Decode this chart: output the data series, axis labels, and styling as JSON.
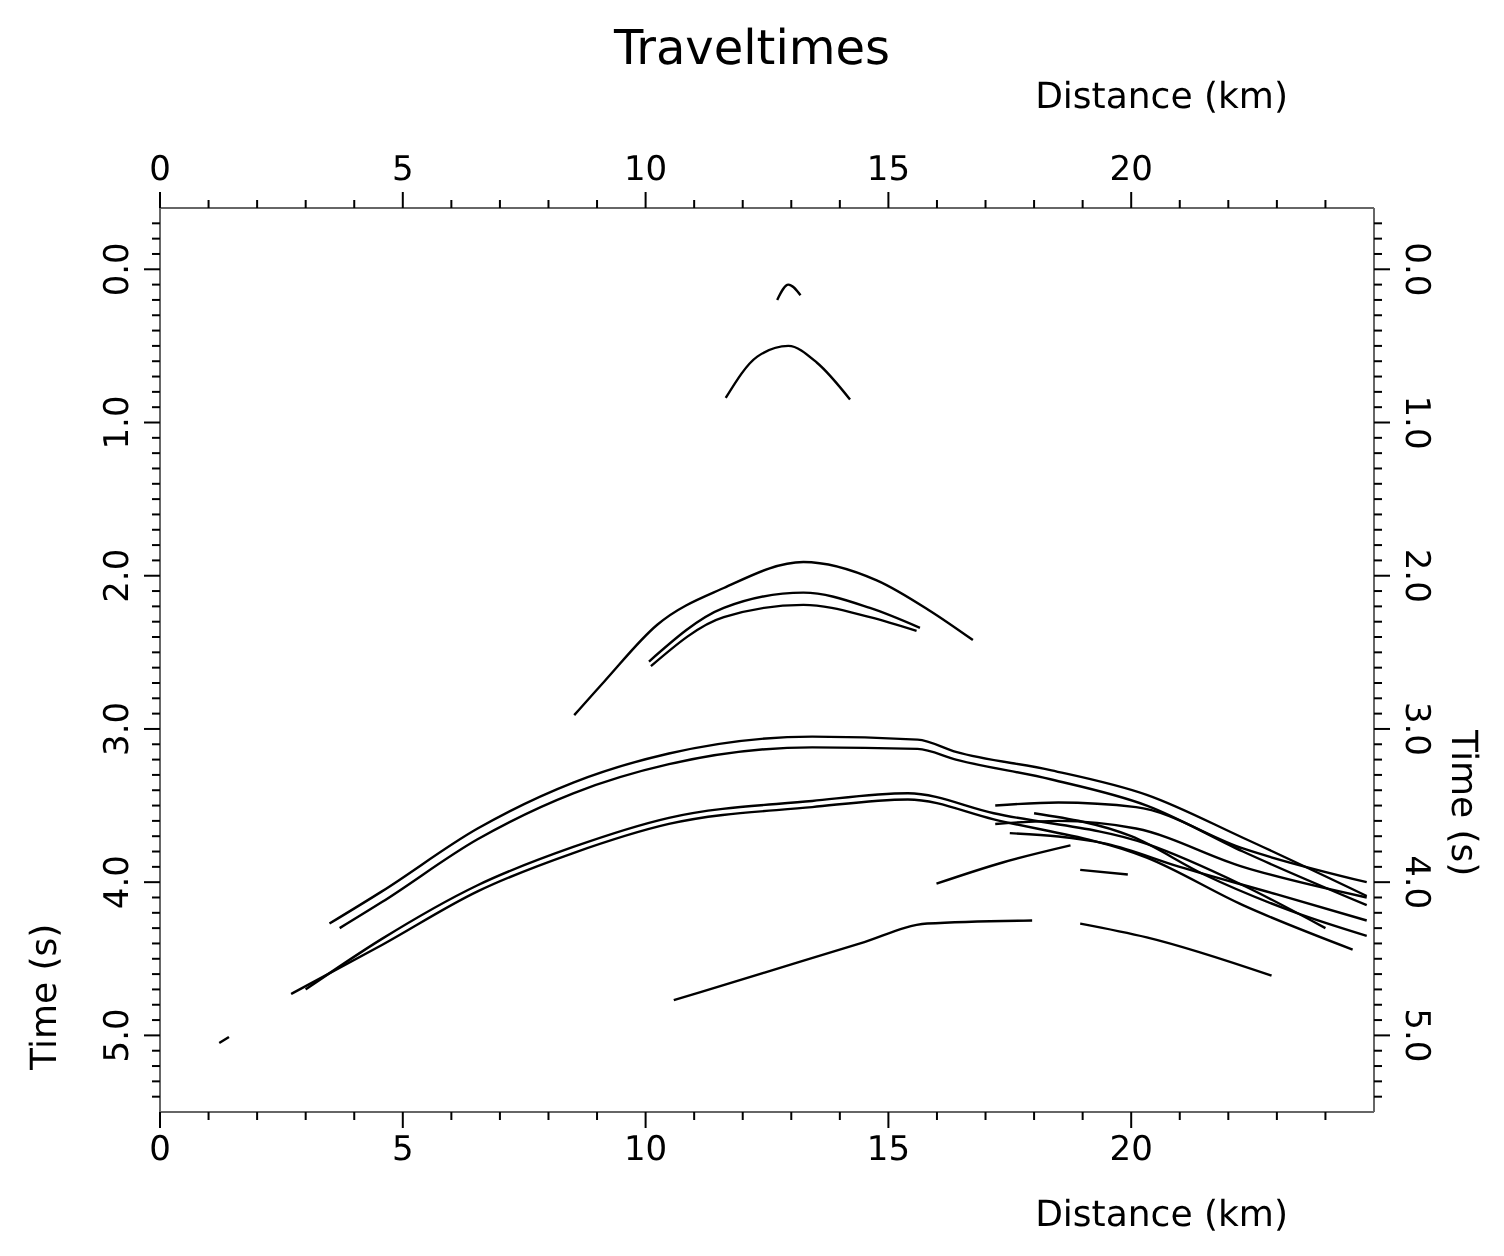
{
  "chart_data": {
    "type": "line",
    "title": "Traveltimes",
    "xlabel": "Distance (km)",
    "x2label": "Distance (km)",
    "ylabel": "Time (s)",
    "y2label": "Time (s)",
    "xlim": [
      0,
      25
    ],
    "x2lim": [
      0,
      25
    ],
    "ylim": [
      5.5,
      -0.4
    ],
    "y2lim": [
      5.5,
      -0.4
    ],
    "xticks": [
      0,
      {
        "value": 1,
        "label": null
      },
      {
        "value": 2,
        "label": null
      },
      {
        "value": 3,
        "label": null
      },
      {
        "value": 4,
        "label": null
      },
      5,
      {
        "value": 6,
        "label": null
      },
      {
        "value": 7,
        "label": null
      },
      {
        "value": 8,
        "label": null
      },
      {
        "value": 9,
        "label": null
      },
      10,
      {
        "value": 11,
        "label": null
      },
      {
        "value": 12,
        "label": null
      },
      {
        "value": 13,
        "label": null
      },
      {
        "value": 14,
        "label": null
      },
      15,
      {
        "value": 16,
        "label": null
      },
      {
        "value": 17,
        "label": null
      },
      {
        "value": 18,
        "label": null
      },
      {
        "value": 19,
        "label": null
      },
      20,
      {
        "value": 21,
        "label": null
      },
      {
        "value": 22,
        "label": null
      },
      {
        "value": 23,
        "label": null
      },
      {
        "value": 24,
        "label": null
      }
    ],
    "x2ticks": [
      0,
      {
        "value": 1,
        "label": null
      },
      {
        "value": 2,
        "label": null
      },
      {
        "value": 3,
        "label": null
      },
      {
        "value": 4,
        "label": null
      },
      5,
      {
        "value": 6,
        "label": null
      },
      {
        "value": 7,
        "label": null
      },
      {
        "value": 8,
        "label": null
      },
      {
        "value": 9,
        "label": null
      },
      10,
      {
        "value": 11,
        "label": null
      },
      {
        "value": 12,
        "label": null
      },
      {
        "value": 13,
        "label": null
      },
      {
        "value": 14,
        "label": null
      },
      15,
      {
        "value": 16,
        "label": null
      },
      {
        "value": 17,
        "label": null
      },
      {
        "value": 18,
        "label": null
      },
      {
        "value": 19,
        "label": null
      },
      20,
      {
        "value": 21,
        "label": null
      },
      {
        "value": 22,
        "label": null
      },
      {
        "value": 23,
        "label": null
      },
      {
        "value": 24,
        "label": null
      }
    ],
    "yticks": [
      {
        "value": -0.3,
        "label": null
      },
      {
        "value": -0.2,
        "label": null
      },
      {
        "value": -0.1,
        "label": null
      },
      {
        "value": 0,
        "label": "0.0"
      },
      {
        "value": 0.1,
        "label": null
      },
      {
        "value": 0.2,
        "label": null
      },
      {
        "value": 0.3,
        "label": null
      },
      {
        "value": 0.4,
        "label": null
      },
      {
        "value": 0.5,
        "label": null
      },
      {
        "value": 0.6,
        "label": null
      },
      {
        "value": 0.7,
        "label": null
      },
      {
        "value": 0.8,
        "label": null
      },
      {
        "value": 0.9,
        "label": null
      },
      {
        "value": 1,
        "label": "1.0"
      },
      {
        "value": 1.1,
        "label": null
      },
      {
        "value": 1.2,
        "label": null
      },
      {
        "value": 1.3,
        "label": null
      },
      {
        "value": 1.4,
        "label": null
      },
      {
        "value": 1.5,
        "label": null
      },
      {
        "value": 1.6,
        "label": null
      },
      {
        "value": 1.7,
        "label": null
      },
      {
        "value": 1.8,
        "label": null
      },
      {
        "value": 1.9,
        "label": null
      },
      {
        "value": 2,
        "label": "2.0"
      },
      {
        "value": 2.1,
        "label": null
      },
      {
        "value": 2.2,
        "label": null
      },
      {
        "value": 2.3,
        "label": null
      },
      {
        "value": 2.4,
        "label": null
      },
      {
        "value": 2.5,
        "label": null
      },
      {
        "value": 2.6,
        "label": null
      },
      {
        "value": 2.7,
        "label": null
      },
      {
        "value": 2.8,
        "label": null
      },
      {
        "value": 2.9,
        "label": null
      },
      {
        "value": 3,
        "label": "3.0"
      },
      {
        "value": 3.1,
        "label": null
      },
      {
        "value": 3.2,
        "label": null
      },
      {
        "value": 3.3,
        "label": null
      },
      {
        "value": 3.4,
        "label": null
      },
      {
        "value": 3.5,
        "label": null
      },
      {
        "value": 3.6,
        "label": null
      },
      {
        "value": 3.7,
        "label": null
      },
      {
        "value": 3.8,
        "label": null
      },
      {
        "value": 3.9,
        "label": null
      },
      {
        "value": 4,
        "label": "4.0"
      },
      {
        "value": 4.1,
        "label": null
      },
      {
        "value": 4.2,
        "label": null
      },
      {
        "value": 4.3,
        "label": null
      },
      {
        "value": 4.4,
        "label": null
      },
      {
        "value": 4.5,
        "label": null
      },
      {
        "value": 4.6,
        "label": null
      },
      {
        "value": 4.7,
        "label": null
      },
      {
        "value": 4.8,
        "label": null
      },
      {
        "value": 4.9,
        "label": null
      },
      {
        "value": 5,
        "label": "5.0"
      },
      {
        "value": 5.1,
        "label": null
      },
      {
        "value": 5.2,
        "label": null
      },
      {
        "value": 5.3,
        "label": null
      },
      {
        "value": 5.4,
        "label": null
      }
    ],
    "y2ticks": [
      {
        "value": -0.3,
        "label": null
      },
      {
        "value": -0.2,
        "label": null
      },
      {
        "value": -0.1,
        "label": null
      },
      {
        "value": 0,
        "label": "0.0"
      },
      {
        "value": 0.1,
        "label": null
      },
      {
        "value": 0.2,
        "label": null
      },
      {
        "value": 0.3,
        "label": null
      },
      {
        "value": 0.4,
        "label": null
      },
      {
        "value": 0.5,
        "label": null
      },
      {
        "value": 0.6,
        "label": null
      },
      {
        "value": 0.7,
        "label": null
      },
      {
        "value": 0.8,
        "label": null
      },
      {
        "value": 0.9,
        "label": null
      },
      {
        "value": 1,
        "label": "1.0"
      },
      {
        "value": 1.1,
        "label": null
      },
      {
        "value": 1.2,
        "label": null
      },
      {
        "value": 1.3,
        "label": null
      },
      {
        "value": 1.4,
        "label": null
      },
      {
        "value": 1.5,
        "label": null
      },
      {
        "value": 1.6,
        "label": null
      },
      {
        "value": 1.7,
        "label": null
      },
      {
        "value": 1.8,
        "label": null
      },
      {
        "value": 1.9,
        "label": null
      },
      {
        "value": 2,
        "label": "2.0"
      },
      {
        "value": 2.1,
        "label": null
      },
      {
        "value": 2.2,
        "label": null
      },
      {
        "value": 2.3,
        "label": null
      },
      {
        "value": 2.4,
        "label": null
      },
      {
        "value": 2.5,
        "label": null
      },
      {
        "value": 2.6,
        "label": null
      },
      {
        "value": 2.7,
        "label": null
      },
      {
        "value": 2.8,
        "label": null
      },
      {
        "value": 2.9,
        "label": null
      },
      {
        "value": 3,
        "label": "3.0"
      },
      {
        "value": 3.1,
        "label": null
      },
      {
        "value": 3.2,
        "label": null
      },
      {
        "value": 3.3,
        "label": null
      },
      {
        "value": 3.4,
        "label": null
      },
      {
        "value": 3.5,
        "label": null
      },
      {
        "value": 3.6,
        "label": null
      },
      {
        "value": 3.7,
        "label": null
      },
      {
        "value": 3.8,
        "label": null
      },
      {
        "value": 3.9,
        "label": null
      },
      {
        "value": 4,
        "label": "4.0"
      },
      {
        "value": 4.1,
        "label": null
      },
      {
        "value": 4.2,
        "label": null
      },
      {
        "value": 4.3,
        "label": null
      },
      {
        "value": 4.4,
        "label": null
      },
      {
        "value": 4.5,
        "label": null
      },
      {
        "value": 4.6,
        "label": null
      },
      {
        "value": 4.7,
        "label": null
      },
      {
        "value": 4.8,
        "label": null
      },
      {
        "value": 4.9,
        "label": null
      },
      {
        "value": 5,
        "label": "5.0"
      },
      {
        "value": 5.1,
        "label": null
      },
      {
        "value": 5.2,
        "label": null
      },
      {
        "value": 5.3,
        "label": null
      },
      {
        "value": 5.4,
        "label": null
      }
    ],
    "marker": "none",
    "line_style": "solid",
    "series": [
      {
        "color": "#000000",
        "x": [
          12.71,
          12.94,
          13.19
        ],
        "values": [
          0.2,
          0.1,
          0.17
        ]
      },
      {
        "color": "#000000",
        "x": [
          11.65,
          12.3,
          12.94,
          13.53,
          14.21
        ],
        "values": [
          0.84,
          0.57,
          0.5,
          0.61,
          0.85
        ]
      },
      {
        "color": "#000000",
        "x": [
          8.53,
          9.15,
          10.24,
          11.61,
          13.25,
          14.76,
          15.86,
          16.74
        ],
        "values": [
          2.91,
          2.69,
          2.32,
          2.08,
          1.91,
          2.03,
          2.23,
          2.42
        ]
      },
      {
        "color": "#000000",
        "x": [
          10.07,
          11.61,
          13.25,
          14.62,
          15.65
        ],
        "values": [
          2.56,
          2.21,
          2.11,
          2.21,
          2.34
        ]
      },
      {
        "color": "#000000",
        "x": [
          10.11,
          11.61,
          13.25,
          14.62,
          15.58
        ],
        "values": [
          2.59,
          2.27,
          2.19,
          2.27,
          2.36
        ]
      },
      {
        "color": "#000000",
        "x": [
          3.49,
          4.57,
          6.54,
          8.51,
          10.48,
          13.43,
          15.6,
          16.39,
          18.36,
          20.32,
          22.3,
          24.85
        ],
        "values": [
          4.27,
          4.06,
          3.65,
          3.35,
          3.16,
          3.05,
          3.07,
          3.15,
          3.27,
          3.43,
          3.71,
          4.09
        ]
      },
      {
        "color": "#000000",
        "x": [
          3.7,
          4.57,
          6.54,
          8.51,
          10.48,
          13.43,
          15.6,
          16.39,
          18.36,
          20.32,
          22.3,
          24.85
        ],
        "values": [
          4.3,
          4.13,
          3.72,
          3.42,
          3.23,
          3.12,
          3.13,
          3.2,
          3.33,
          3.5,
          3.8,
          4.15
        ]
      },
      {
        "color": "#000000",
        "x": [
          2.7,
          4.57,
          6.54,
          8.51,
          10.48,
          13.43,
          15.4,
          17.17,
          20.32,
          22.3,
          24.56
        ],
        "values": [
          4.73,
          4.41,
          4.06,
          3.81,
          3.62,
          3.51,
          3.46,
          3.59,
          3.84,
          4.15,
          4.44
        ]
      },
      {
        "color": "#000000",
        "x": [
          3.0,
          4.57,
          6.54,
          8.51,
          10.48,
          13.43,
          15.4,
          17.17,
          20.32,
          22.3,
          24.0
        ],
        "values": [
          4.7,
          4.37,
          4.02,
          3.77,
          3.58,
          3.47,
          3.42,
          3.55,
          3.75,
          4.02,
          4.3
        ]
      },
      {
        "color": "#000000",
        "x": [
          17.2,
          18.5,
          20.1,
          22.3,
          24.85
        ],
        "values": [
          3.5,
          3.48,
          3.51,
          3.78,
          4.0
        ]
      },
      {
        "color": "#000000",
        "x": [
          17.2,
          18.5,
          20.1,
          22.3,
          24.85
        ],
        "values": [
          3.62,
          3.6,
          3.65,
          3.9,
          4.1
        ]
      },
      {
        "color": "#000000",
        "x": [
          17.5,
          19.5,
          21.0,
          23.0,
          24.85
        ],
        "values": [
          3.68,
          3.75,
          3.9,
          4.08,
          4.25
        ]
      },
      {
        "color": "#000000",
        "x": [
          18.0,
          20.0,
          21.5,
          23.4,
          24.85
        ],
        "values": [
          3.55,
          3.7,
          3.95,
          4.2,
          4.35
        ]
      },
      {
        "color": "#000000",
        "x": [
          10.58,
          12.45,
          14.42,
          15.8,
          17.96
        ],
        "values": [
          4.77,
          4.59,
          4.4,
          4.27,
          4.25
        ]
      },
      {
        "color": "#000000",
        "x": [
          18.95,
          20.32,
          22.89
        ],
        "values": [
          4.27,
          4.36,
          4.61
        ]
      },
      {
        "color": "#000000",
        "x": [
          15.99,
          17.37,
          18.75
        ],
        "values": [
          4.01,
          3.87,
          3.76
        ]
      },
      {
        "color": "#000000",
        "x": [
          18.95,
          19.93
        ],
        "values": [
          3.92,
          3.95
        ]
      },
      {
        "color": "#000000",
        "x": [
          1.22,
          1.42
        ],
        "values": [
          5.05,
          5.01
        ]
      }
    ]
  }
}
